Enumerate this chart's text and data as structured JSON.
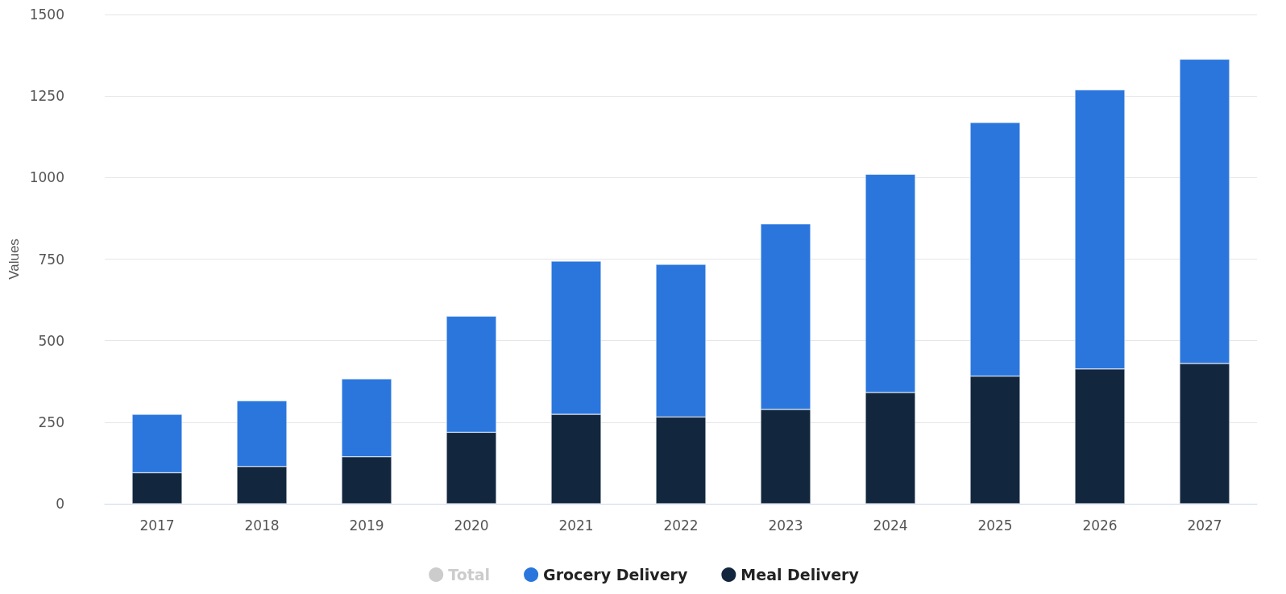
{
  "chart_data": {
    "type": "bar",
    "stacked": true,
    "categories": [
      "2017",
      "2018",
      "2019",
      "2020",
      "2021",
      "2022",
      "2023",
      "2024",
      "2025",
      "2026",
      "2027"
    ],
    "series": [
      {
        "name": "Meal Delivery",
        "color": "#12273e",
        "values": [
          95,
          114,
          144,
          219,
          274,
          266,
          289,
          341,
          391,
          413,
          430
        ]
      },
      {
        "name": "Grocery Delivery",
        "color": "#2a76dd",
        "values": [
          179,
          202,
          239,
          356,
          470,
          468,
          569,
          669,
          778,
          856,
          933
        ]
      },
      {
        "name": "Total",
        "color": "#cccccc",
        "values": [
          null,
          null,
          null,
          null,
          null,
          null,
          null,
          null,
          null,
          null,
          null
        ]
      }
    ],
    "ylabel": "Values",
    "ylim": [
      0,
      1500
    ],
    "yticks": [
      0,
      250,
      500,
      750,
      1000,
      1250,
      1500
    ],
    "grid": "y",
    "legend": "bottom"
  }
}
